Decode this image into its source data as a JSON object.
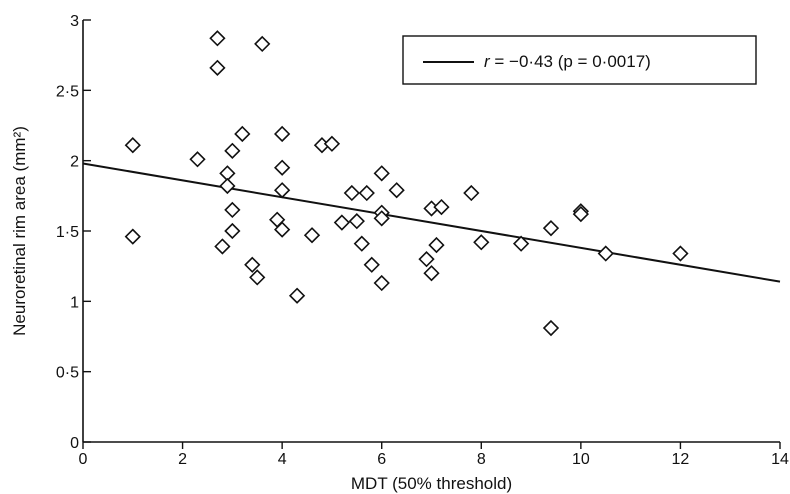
{
  "chart_data": {
    "type": "scatter",
    "xlabel": "MDT (50% threshold)",
    "ylabel": "Neuroretinal rim area (mm²)",
    "xlim": [
      0,
      14
    ],
    "ylim": [
      0,
      3
    ],
    "x_ticks": [
      {
        "value": 0,
        "label": "0"
      },
      {
        "value": 2,
        "label": "2"
      },
      {
        "value": 4,
        "label": "4"
      },
      {
        "value": 6,
        "label": "6"
      },
      {
        "value": 8,
        "label": "8"
      },
      {
        "value": 10,
        "label": "10"
      },
      {
        "value": 12,
        "label": "12"
      },
      {
        "value": 14,
        "label": "14"
      }
    ],
    "y_ticks": [
      {
        "value": 0,
        "label": "0"
      },
      {
        "value": 0.5,
        "label": "0·5"
      },
      {
        "value": 1,
        "label": "1"
      },
      {
        "value": 1.5,
        "label": "1·5"
      },
      {
        "value": 2,
        "label": "2"
      },
      {
        "value": 2.5,
        "label": "2·5"
      },
      {
        "value": 3,
        "label": "3"
      }
    ],
    "grid": false,
    "legend": {
      "placement": "top-right",
      "r_symbol": "r",
      "text": " = −0·43 (p = 0·0017)"
    },
    "regression": {
      "x": [
        0,
        14
      ],
      "y": [
        1.98,
        1.14
      ]
    },
    "marker": "open-diamond",
    "points": [
      {
        "x": 1.0,
        "y": 2.11
      },
      {
        "x": 1.0,
        "y": 1.46
      },
      {
        "x": 2.3,
        "y": 2.01
      },
      {
        "x": 2.7,
        "y": 2.87
      },
      {
        "x": 2.7,
        "y": 2.66
      },
      {
        "x": 2.8,
        "y": 1.39
      },
      {
        "x": 2.9,
        "y": 1.91
      },
      {
        "x": 2.9,
        "y": 1.82
      },
      {
        "x": 3.0,
        "y": 2.07
      },
      {
        "x": 3.0,
        "y": 1.65
      },
      {
        "x": 3.0,
        "y": 1.5
      },
      {
        "x": 3.2,
        "y": 2.19
      },
      {
        "x": 3.4,
        "y": 1.26
      },
      {
        "x": 3.5,
        "y": 1.17
      },
      {
        "x": 3.6,
        "y": 2.83
      },
      {
        "x": 3.9,
        "y": 1.58
      },
      {
        "x": 4.0,
        "y": 2.19
      },
      {
        "x": 4.0,
        "y": 1.95
      },
      {
        "x": 4.0,
        "y": 1.79
      },
      {
        "x": 4.0,
        "y": 1.51
      },
      {
        "x": 4.3,
        "y": 1.04
      },
      {
        "x": 4.6,
        "y": 1.47
      },
      {
        "x": 4.8,
        "y": 2.11
      },
      {
        "x": 5.0,
        "y": 2.12
      },
      {
        "x": 5.2,
        "y": 1.56
      },
      {
        "x": 5.4,
        "y": 1.77
      },
      {
        "x": 5.5,
        "y": 1.57
      },
      {
        "x": 5.6,
        "y": 1.41
      },
      {
        "x": 5.7,
        "y": 1.77
      },
      {
        "x": 5.8,
        "y": 1.26
      },
      {
        "x": 6.0,
        "y": 1.91
      },
      {
        "x": 6.0,
        "y": 1.63
      },
      {
        "x": 6.0,
        "y": 1.59
      },
      {
        "x": 6.0,
        "y": 1.13
      },
      {
        "x": 6.3,
        "y": 1.79
      },
      {
        "x": 6.9,
        "y": 1.3
      },
      {
        "x": 7.0,
        "y": 1.66
      },
      {
        "x": 7.0,
        "y": 1.2
      },
      {
        "x": 7.1,
        "y": 1.4
      },
      {
        "x": 7.2,
        "y": 1.67
      },
      {
        "x": 7.8,
        "y": 1.77
      },
      {
        "x": 8.0,
        "y": 1.42
      },
      {
        "x": 8.8,
        "y": 1.41
      },
      {
        "x": 9.4,
        "y": 1.52
      },
      {
        "x": 9.4,
        "y": 0.81
      },
      {
        "x": 10.0,
        "y": 1.64
      },
      {
        "x": 10.0,
        "y": 1.62
      },
      {
        "x": 10.5,
        "y": 1.34
      },
      {
        "x": 12.0,
        "y": 1.34
      }
    ]
  }
}
